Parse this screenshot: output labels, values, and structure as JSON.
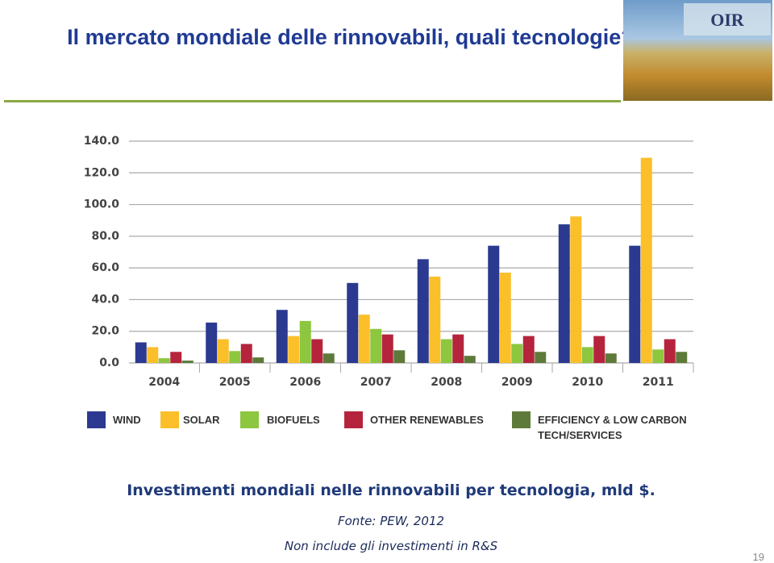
{
  "header": {
    "title": "Il mercato mondiale delle rinnovabili, quali tecnologie?",
    "logo": "OIR"
  },
  "chart_data": {
    "type": "bar",
    "categories": [
      "2004",
      "2005",
      "2006",
      "2007",
      "2008",
      "2009",
      "2010",
      "2011"
    ],
    "series": [
      {
        "name": "WIND",
        "color": "#2b3990",
        "values": [
          13,
          25.5,
          33.5,
          50.5,
          65.5,
          74,
          87.5,
          74
        ]
      },
      {
        "name": "SOLAR",
        "color": "#fbbf2a",
        "values": [
          10,
          15,
          17,
          30.5,
          54.5,
          57,
          92.5,
          129.5
        ]
      },
      {
        "name": "BIOFUELS",
        "color": "#8dc63f",
        "values": [
          3,
          7.5,
          26.5,
          21.5,
          15,
          12,
          10,
          8.5
        ]
      },
      {
        "name": "OTHER RENEWABLES",
        "color": "#b5243c",
        "values": [
          7,
          12,
          15,
          18,
          18,
          17,
          17,
          15
        ]
      },
      {
        "name": "EFFICIENCY & LOW CARBON TECH/SERVICES",
        "color": "#5e7a3a",
        "values": [
          1.5,
          3.5,
          6,
          8,
          4.5,
          7,
          6,
          7
        ]
      }
    ],
    "ylim": [
      0,
      140
    ],
    "yticks": [
      {
        "value": 0,
        "label": "0.0"
      },
      {
        "value": 20,
        "label": "20.0"
      },
      {
        "value": 40,
        "label": "40.0"
      },
      {
        "value": 60,
        "label": "60.0"
      },
      {
        "value": 80,
        "label": "80.0"
      },
      {
        "value": 100,
        "label": "100.0"
      },
      {
        "value": 120,
        "label": "120.0"
      },
      {
        "value": 140,
        "label": "140.0"
      }
    ],
    "grid": true
  },
  "caption": "Investimenti mondiali nelle rinnovabili per tecnologia, mld $.",
  "source": "Fonte: PEW, 2012",
  "note": "Non include gli investimenti in R&S",
  "page_number": "19"
}
